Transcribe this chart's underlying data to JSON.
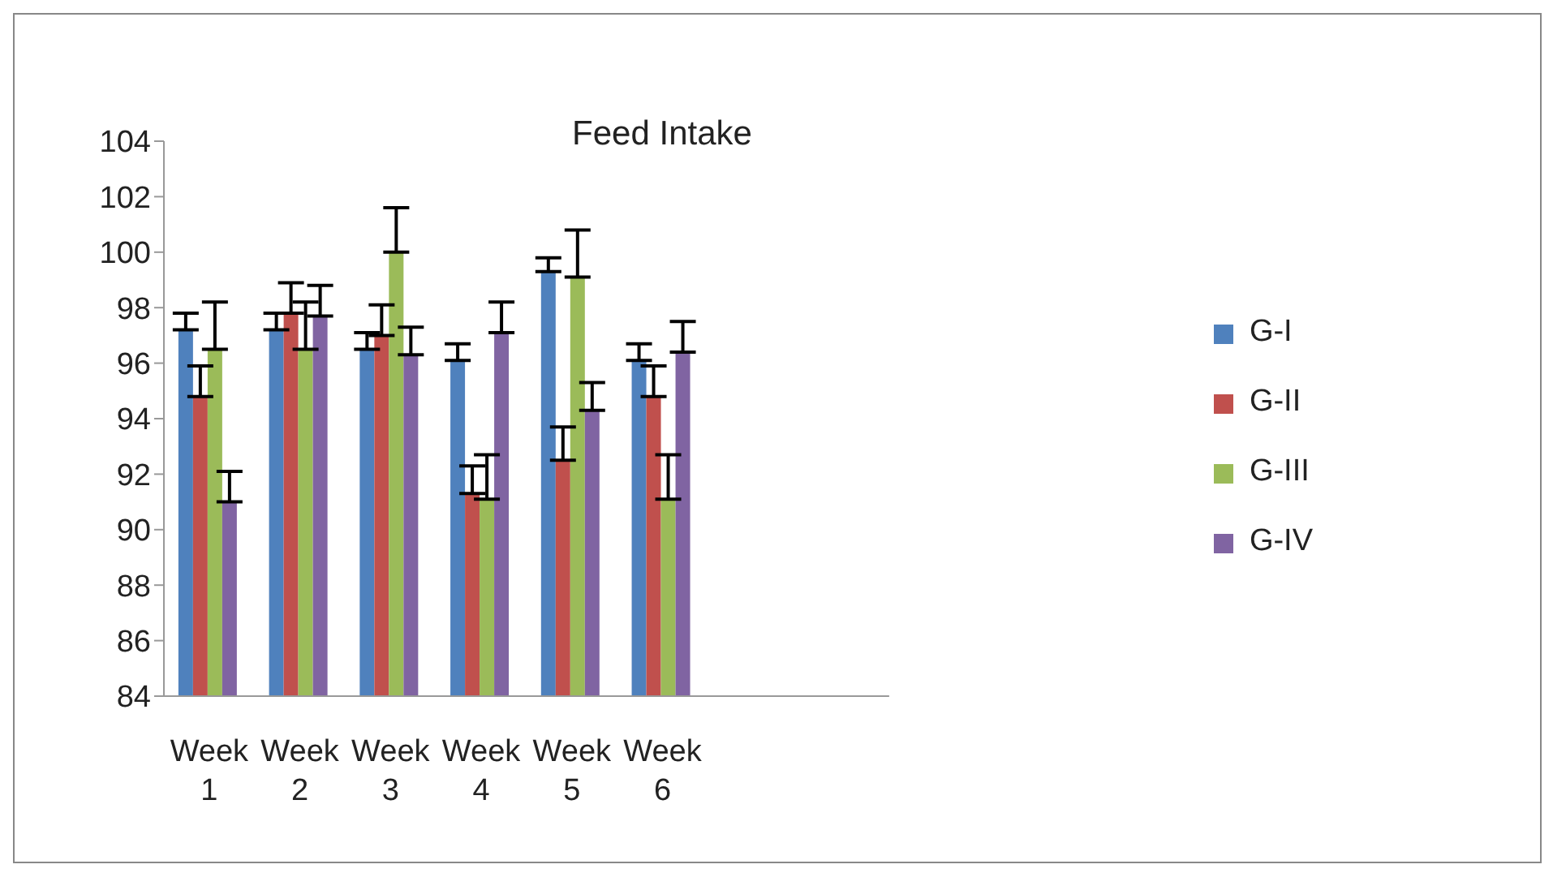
{
  "chart_data": {
    "type": "bar",
    "title": "Feed Intake",
    "categories": [
      "Week 1",
      "Week 2",
      "Week 3",
      "Week 4",
      "Week 5",
      "Week 6",
      null,
      null
    ],
    "series": [
      {
        "name": "G-I",
        "color": "#4f81bd",
        "values": [
          97.2,
          97.2,
          96.5,
          96.1,
          99.3,
          96.1,
          null,
          null
        ],
        "errors": [
          [
            97.2,
            97.8
          ],
          [
            97.2,
            97.8
          ],
          [
            96.5,
            97.1
          ],
          [
            96.1,
            96.7
          ],
          [
            99.3,
            99.8
          ],
          [
            96.1,
            96.7
          ],
          null,
          null
        ]
      },
      {
        "name": "G-II",
        "color": "#c0504d",
        "values": [
          94.8,
          97.8,
          97.0,
          91.3,
          92.5,
          94.8,
          null,
          null
        ],
        "errors": [
          [
            94.8,
            95.9
          ],
          [
            97.8,
            98.9
          ],
          [
            97.0,
            98.1
          ],
          [
            91.3,
            92.3
          ],
          [
            92.5,
            93.7
          ],
          [
            94.8,
            95.9
          ],
          null,
          null
        ]
      },
      {
        "name": "G-III",
        "color": "#9bbb59",
        "values": [
          96.5,
          96.5,
          100.0,
          91.1,
          99.1,
          91.1,
          null,
          null
        ],
        "errors": [
          [
            96.5,
            98.2
          ],
          [
            96.5,
            98.2
          ],
          [
            100.0,
            101.6
          ],
          [
            91.1,
            92.7
          ],
          [
            99.1,
            100.8
          ],
          [
            91.1,
            92.7
          ],
          null,
          null
        ]
      },
      {
        "name": "G-IV",
        "color": "#8064a2",
        "values": [
          91.0,
          97.7,
          96.3,
          97.1,
          94.3,
          96.4,
          null,
          null
        ],
        "errors": [
          [
            91.0,
            92.1
          ],
          [
            97.7,
            98.8
          ],
          [
            96.3,
            97.3
          ],
          [
            97.1,
            98.2
          ],
          [
            94.3,
            95.3
          ],
          [
            96.4,
            97.5
          ],
          null,
          null
        ]
      }
    ],
    "ylim": [
      84,
      104
    ],
    "yticks": [
      84,
      86,
      88,
      90,
      92,
      94,
      96,
      98,
      100,
      102,
      104
    ],
    "grid": false,
    "legend": "right"
  }
}
